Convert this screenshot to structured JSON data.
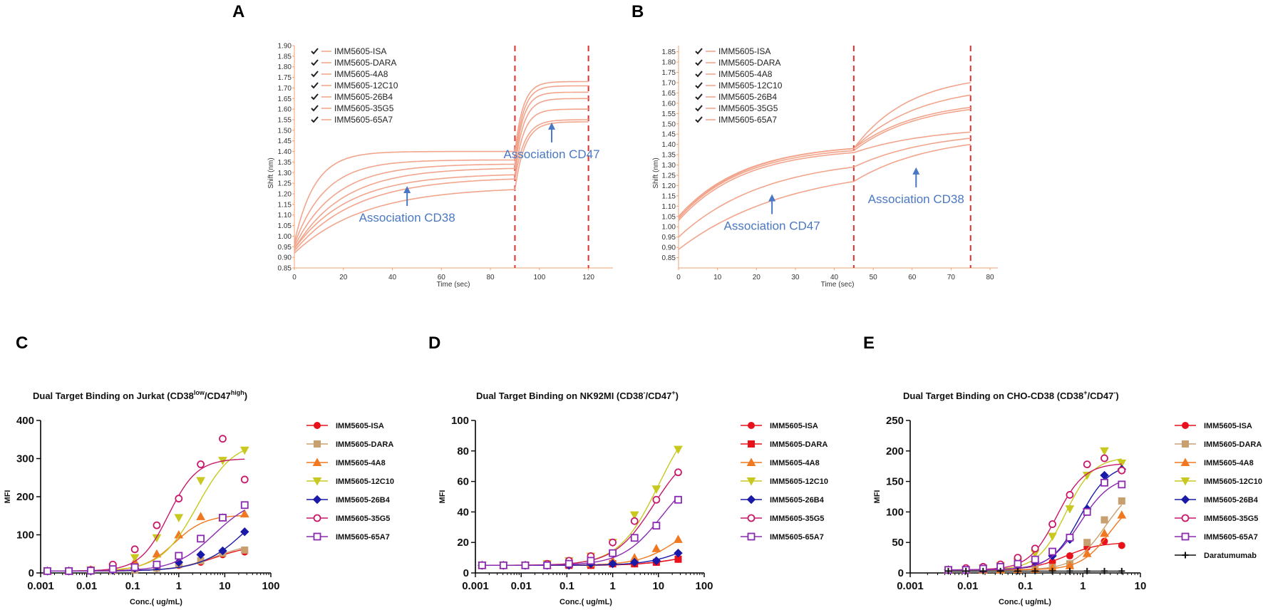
{
  "panels": [
    {
      "letter": "A"
    },
    {
      "letter": "B"
    },
    {
      "letter": "C"
    },
    {
      "letter": "D"
    },
    {
      "letter": "E"
    }
  ],
  "chart_data": [
    {
      "panel": "A",
      "type": "line",
      "title": "",
      "xlabel": "Time (sec)",
      "ylabel": "Shift (nm)",
      "xlim": [
        0,
        130
      ],
      "ylim": [
        0.85,
        1.9
      ],
      "xticks": [
        0,
        20,
        40,
        60,
        80,
        100,
        120
      ],
      "yticks": [
        0.85,
        0.9,
        0.95,
        1.0,
        1.05,
        1.1,
        1.15,
        1.2,
        1.25,
        1.3,
        1.35,
        1.4,
        1.45,
        1.5,
        1.55,
        1.6,
        1.65,
        1.7,
        1.75,
        1.8,
        1.85,
        1.9
      ],
      "line_color": "#f2a58c",
      "vlines": [
        90,
        120
      ],
      "phase_split": 90,
      "phase_end": 120,
      "annotations": [
        {
          "text": "Association CD38",
          "x": 46,
          "y": 1.19
        },
        {
          "text": "Association CD47",
          "x": 105,
          "y": 1.49
        }
      ],
      "legend": [
        "IMM5605-ISA",
        "IMM5605-DARA",
        "IMM5605-4A8",
        "IMM5605-12C10",
        "IMM5605-26B4",
        "IMM5605-35G5",
        "IMM5605-65A7"
      ],
      "series": [
        {
          "start": 0.97,
          "p1_end": 1.4,
          "k1": 0.12,
          "p2_end": 1.73,
          "k2": 0.3
        },
        {
          "start": 0.96,
          "p1_end": 1.36,
          "k1": 0.08,
          "p2_end": 1.71,
          "k2": 0.3
        },
        {
          "start": 0.95,
          "p1_end": 1.34,
          "k1": 0.06,
          "p2_end": 1.68,
          "k2": 0.3
        },
        {
          "start": 0.94,
          "p1_end": 1.32,
          "k1": 0.05,
          "p2_end": 1.65,
          "k2": 0.28
        },
        {
          "start": 0.94,
          "p1_end": 1.29,
          "k1": 0.045,
          "p2_end": 1.6,
          "k2": 0.28
        },
        {
          "start": 0.93,
          "p1_end": 1.27,
          "k1": 0.04,
          "p2_end": 1.55,
          "k2": 0.25
        },
        {
          "start": 0.92,
          "p1_end": 1.22,
          "k1": 0.035,
          "p2_end": 1.54,
          "k2": 0.25
        }
      ]
    },
    {
      "panel": "B",
      "type": "line",
      "title": "",
      "xlabel": "Time (sec)",
      "ylabel": "Shift (nm)",
      "xlim": [
        0,
        82
      ],
      "ylim": [
        0.8,
        1.88
      ],
      "xticks": [
        0,
        10,
        20,
        30,
        40,
        50,
        60,
        70,
        80
      ],
      "yticks": [
        0.85,
        0.9,
        0.95,
        1.0,
        1.05,
        1.1,
        1.15,
        1.2,
        1.25,
        1.3,
        1.35,
        1.4,
        1.45,
        1.5,
        1.55,
        1.6,
        1.65,
        1.7,
        1.75,
        1.8,
        1.85
      ],
      "line_color": "#f2a58c",
      "vlines": [
        45,
        75
      ],
      "phase_split": 45,
      "phase_end": 75,
      "annotations": [
        {
          "text": "Association CD47",
          "x": 24,
          "y": 1.11
        },
        {
          "text": "Association CD38",
          "x": 61,
          "y": 1.24
        }
      ],
      "legend": [
        "IMM5605-ISA",
        "IMM5605-DARA",
        "IMM5605-4A8",
        "IMM5605-12C10",
        "IMM5605-26B4",
        "IMM5605-35G5",
        "IMM5605-65A7"
      ],
      "series": [
        {
          "start": 1.05,
          "p1_end": 1.38,
          "k1": 0.06,
          "p2_end": 1.7,
          "k2": 0.07
        },
        {
          "start": 1.05,
          "p1_end": 1.38,
          "k1": 0.06,
          "p2_end": 1.64,
          "k2": 0.06
        },
        {
          "start": 1.04,
          "p1_end": 1.38,
          "k1": 0.06,
          "p2_end": 1.58,
          "k2": 0.06
        },
        {
          "start": 1.04,
          "p1_end": 1.37,
          "k1": 0.06,
          "p2_end": 1.57,
          "k2": 0.06
        },
        {
          "start": 1.03,
          "p1_end": 1.36,
          "k1": 0.06,
          "p2_end": 1.46,
          "k2": 0.05
        },
        {
          "start": 0.95,
          "p1_end": 1.29,
          "k1": 0.045,
          "p2_end": 1.43,
          "k2": 0.05
        },
        {
          "start": 0.89,
          "p1_end": 1.22,
          "k1": 0.035,
          "p2_end": 1.4,
          "k2": 0.05
        }
      ]
    },
    {
      "panel": "C",
      "type": "scatter",
      "title": "Dual Target Binding on Jurkat (CD38",
      "title_sup1": "low",
      "title_mid": "/CD47",
      "title_sup2": "high",
      "title_end": ")",
      "xlabel": "Conc.( ug/mL)",
      "ylabel": "MFI",
      "xscale": "log",
      "xlim": [
        0.001,
        100
      ],
      "ylim": [
        0,
        400
      ],
      "xticks": [
        0.001,
        0.01,
        0.1,
        1,
        10,
        100
      ],
      "xtick_labels": [
        "0.001",
        "0.01",
        "0.1",
        "1",
        "10",
        "100"
      ],
      "yticks": [
        0,
        100,
        200,
        300,
        400
      ],
      "ytick_labels": [
        "0",
        "100",
        "200",
        "300",
        "400"
      ],
      "x": [
        0.0014,
        0.0041,
        0.0123,
        0.037,
        0.111,
        0.333,
        1.0,
        3.0,
        9.0,
        27.0
      ],
      "series": [
        {
          "name": "IMM5605-ISA",
          "color": "#e8121c",
          "marker": "circle",
          "fill": true,
          "values": [
            5,
            5,
            5,
            6,
            8,
            12,
            20,
            28,
            48,
            55
          ],
          "fit": {
            "bottom": 5,
            "top": 75,
            "ec50": 6,
            "hill": 1
          }
        },
        {
          "name": "IMM5605-DARA",
          "color": "#c8a070",
          "marker": "square",
          "fill": true,
          "values": [
            5,
            5,
            5,
            6,
            8,
            13,
            22,
            32,
            52,
            60
          ],
          "fit": {
            "bottom": 5,
            "top": 80,
            "ec50": 6,
            "hill": 1
          }
        },
        {
          "name": "IMM5605-4A8",
          "color": "#f07820",
          "marker": "triangle-up",
          "fill": true,
          "values": [
            5,
            5,
            8,
            18,
            30,
            50,
            100,
            148,
            145,
            155
          ],
          "fit": {
            "bottom": 5,
            "top": 152,
            "ec50": 0.8,
            "hill": 1.3
          }
        },
        {
          "name": "IMM5605-12C10",
          "color": "#c8c820",
          "marker": "triangle-down",
          "fill": true,
          "values": [
            5,
            5,
            8,
            15,
            40,
            92,
            145,
            242,
            295,
            322
          ],
          "fit": {
            "bottom": 5,
            "top": 345,
            "ec50": 2.5,
            "hill": 1.1
          }
        },
        {
          "name": "IMM5605-26B4",
          "color": "#1a1aa8",
          "marker": "diamond",
          "fill": true,
          "values": [
            5,
            5,
            5,
            7,
            12,
            18,
            28,
            48,
            58,
            108
          ],
          "fit": {
            "bottom": 5,
            "top": 220,
            "ec50": 30,
            "hill": 0.9
          }
        },
        {
          "name": "IMM5605-35G5",
          "color": "#c8186a",
          "marker": "circle",
          "fill": false,
          "values": [
            5,
            5,
            8,
            22,
            62,
            125,
            195,
            285,
            352,
            245
          ],
          "fit": {
            "bottom": 5,
            "top": 300,
            "ec50": 0.6,
            "hill": 1.4
          }
        },
        {
          "name": "IMM5605-65A7",
          "color": "#8a2ab0",
          "marker": "square",
          "fill": false,
          "values": [
            5,
            5,
            6,
            10,
            15,
            22,
            45,
            90,
            145,
            178
          ],
          "fit": {
            "bottom": 5,
            "top": 200,
            "ec50": 6,
            "hill": 1.0
          }
        }
      ]
    },
    {
      "panel": "D",
      "type": "scatter",
      "title": "Dual Target Binding on NK92MI (CD38",
      "title_sup1": "-",
      "title_mid": "/CD47",
      "title_sup2": "+",
      "title_end": ")",
      "xlabel": "Conc.( ug/mL)",
      "ylabel": "MFI",
      "xscale": "log",
      "xlim": [
        0.001,
        100
      ],
      "ylim": [
        0,
        100
      ],
      "xticks": [
        0.001,
        0.01,
        0.1,
        1,
        10,
        100
      ],
      "xtick_labels": [
        "0.001",
        "0.01",
        "0.1",
        "1",
        "10",
        "100"
      ],
      "yticks": [
        0,
        20,
        40,
        60,
        80,
        100
      ],
      "ytick_labels": [
        "0",
        "20",
        "40",
        "60",
        "80",
        "100"
      ],
      "x": [
        0.0014,
        0.0041,
        0.0123,
        0.037,
        0.111,
        0.333,
        1.0,
        3.0,
        9.0,
        27.0
      ],
      "series": [
        {
          "name": "IMM5605-ISA",
          "color": "#e8121c",
          "marker": "circle",
          "fill": true,
          "values": [
            5,
            5,
            5,
            5,
            5,
            5,
            6,
            6,
            7,
            9
          ],
          "fit": {
            "bottom": 5,
            "top": 14,
            "ec50": 30,
            "hill": 1
          }
        },
        {
          "name": "IMM5605-DARA",
          "color": "#e8121c",
          "marker": "square",
          "fill": true,
          "values": [
            5,
            5,
            5,
            5,
            5,
            5,
            6,
            6,
            7,
            9
          ],
          "fit": {
            "bottom": 5,
            "top": 14,
            "ec50": 30,
            "hill": 1
          }
        },
        {
          "name": "IMM5605-4A8",
          "color": "#f07820",
          "marker": "triangle-up",
          "fill": true,
          "values": [
            5,
            5,
            5,
            5,
            6,
            6,
            8,
            10,
            16,
            22
          ],
          "fit": {
            "bottom": 5,
            "top": 40,
            "ec50": 30,
            "hill": 1
          }
        },
        {
          "name": "IMM5605-12C10",
          "color": "#c8c820",
          "marker": "triangle-down",
          "fill": true,
          "values": [
            5,
            5,
            5,
            6,
            8,
            11,
            20,
            38,
            55,
            81
          ],
          "fit": {
            "bottom": 5,
            "top": 110,
            "ec50": 10,
            "hill": 1
          }
        },
        {
          "name": "IMM5605-26B4",
          "color": "#1a1aa8",
          "marker": "diamond",
          "fill": true,
          "values": [
            5,
            5,
            5,
            5,
            5,
            6,
            6,
            7,
            8,
            13
          ],
          "fit": {
            "bottom": 5,
            "top": 25,
            "ec50": 40,
            "hill": 1
          }
        },
        {
          "name": "IMM5605-35G5",
          "color": "#c8186a",
          "marker": "circle",
          "fill": false,
          "values": [
            5,
            5,
            5,
            6,
            8,
            11,
            20,
            34,
            48,
            66
          ],
          "fit": {
            "bottom": 5,
            "top": 85,
            "ec50": 8,
            "hill": 1
          }
        },
        {
          "name": "IMM5605-65A7",
          "color": "#8a2ab0",
          "marker": "square",
          "fill": false,
          "values": [
            5,
            5,
            5,
            5,
            6,
            8,
            13,
            23,
            31,
            48
          ],
          "fit": {
            "bottom": 5,
            "top": 70,
            "ec50": 12,
            "hill": 1
          }
        }
      ]
    },
    {
      "panel": "E",
      "type": "scatter",
      "title": "Dual Target Binding on CHO-CD38 (CD38",
      "title_sup1": "+",
      "title_mid": "/CD47",
      "title_sup2": "-",
      "title_end": ")",
      "xlabel": "Conc.( ug/mL)",
      "ylabel": "MFI",
      "xscale": "log",
      "xlim": [
        0.001,
        10
      ],
      "ylim": [
        0,
        250
      ],
      "xticks": [
        0.001,
        0.01,
        0.1,
        1,
        10
      ],
      "xtick_labels": [
        "0.001",
        "0.01",
        "0.1",
        "1",
        "10"
      ],
      "yticks": [
        0,
        50,
        100,
        150,
        200,
        250
      ],
      "ytick_labels": [
        "0",
        "50",
        "100",
        "150",
        "200",
        "250"
      ],
      "x": [
        0.0046,
        0.0093,
        0.0185,
        0.037,
        0.074,
        0.148,
        0.296,
        0.593,
        1.185,
        2.37,
        4.74
      ],
      "series": [
        {
          "name": "IMM5605-ISA",
          "color": "#e8121c",
          "marker": "circle",
          "fill": true,
          "values": [
            5,
            5,
            5,
            6,
            8,
            12,
            18,
            28,
            42,
            52,
            45
          ],
          "fit": {
            "bottom": 5,
            "top": 50,
            "ec50": 0.5,
            "hill": 1.5
          }
        },
        {
          "name": "IMM5605-DARA",
          "color": "#c8a070",
          "marker": "square",
          "fill": true,
          "values": [
            5,
            5,
            5,
            5,
            6,
            7,
            9,
            15,
            50,
            87,
            118
          ],
          "fit": {
            "bottom": 5,
            "top": 150,
            "ec50": 2.5,
            "hill": 1.6
          }
        },
        {
          "name": "IMM5605-4A8",
          "color": "#f07820",
          "marker": "triangle-up",
          "fill": true,
          "values": [
            5,
            5,
            5,
            5,
            6,
            6,
            8,
            12,
            32,
            65,
            95
          ],
          "fit": {
            "bottom": 5,
            "top": 130,
            "ec50": 3,
            "hill": 1.7
          }
        },
        {
          "name": "IMM5605-12C10",
          "color": "#c8c820",
          "marker": "triangle-down",
          "fill": true,
          "values": [
            5,
            5,
            8,
            12,
            18,
            32,
            60,
            105,
            160,
            200,
            180
          ],
          "fit": {
            "bottom": 5,
            "top": 190,
            "ec50": 0.5,
            "hill": 1.8
          }
        },
        {
          "name": "IMM5605-26B4",
          "color": "#1a1aa8",
          "marker": "diamond",
          "fill": true,
          "values": [
            5,
            5,
            6,
            8,
            12,
            18,
            28,
            55,
            105,
            160,
            170
          ],
          "fit": {
            "bottom": 5,
            "top": 180,
            "ec50": 0.9,
            "hill": 1.7
          }
        },
        {
          "name": "IMM5605-35G5",
          "color": "#c8186a",
          "marker": "circle",
          "fill": false,
          "values": [
            5,
            8,
            10,
            14,
            25,
            40,
            80,
            128,
            178,
            188,
            168
          ],
          "fit": {
            "bottom": 5,
            "top": 180,
            "ec50": 0.35,
            "hill": 1.8
          }
        },
        {
          "name": "IMM5605-65A7",
          "color": "#8a2ab0",
          "marker": "square",
          "fill": false,
          "values": [
            5,
            5,
            7,
            10,
            15,
            22,
            35,
            58,
            100,
            148,
            145
          ],
          "fit": {
            "bottom": 5,
            "top": 160,
            "ec50": 0.9,
            "hill": 1.6
          }
        },
        {
          "name": "Daratumumab",
          "color": "#111111",
          "marker": "plus",
          "fill": true,
          "values": [
            3,
            3,
            3,
            3,
            3,
            3,
            3,
            3,
            3,
            3,
            3
          ],
          "fit": {
            "bottom": 3,
            "top": 3,
            "ec50": 1,
            "hill": 1
          }
        }
      ]
    }
  ]
}
